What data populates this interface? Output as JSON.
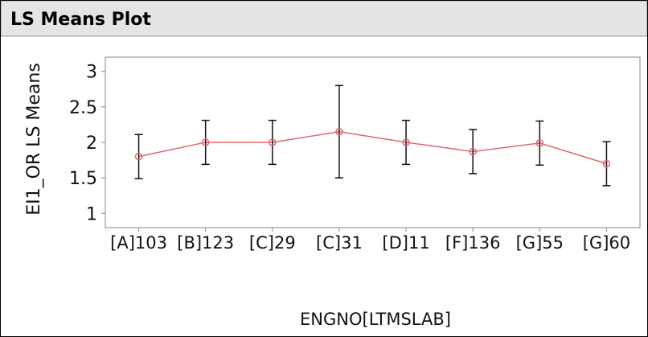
{
  "chart_data": {
    "type": "line",
    "title": "LS Means Plot",
    "y_label": "EI1_OR LS Means",
    "x_label": "ENGNO[LTMSLAB]",
    "categories": [
      "[A]103",
      "[B]123",
      "[C]29",
      "[C]31",
      "[D]11",
      "[F]136",
      "[G]55",
      "[G]60"
    ],
    "series": [
      {
        "color": "#e06672",
        "values": [
          1.8,
          2.0,
          2.0,
          2.15,
          2.0,
          1.87,
          1.99,
          1.7
        ],
        "errors": [
          0.31,
          0.31,
          0.31,
          0.65,
          0.31,
          0.31,
          0.31,
          0.31
        ]
      }
    ],
    "ylim": [
      0.8,
      3.2
    ],
    "yticks": [
      1,
      1.5,
      2,
      2.5,
      3
    ]
  }
}
